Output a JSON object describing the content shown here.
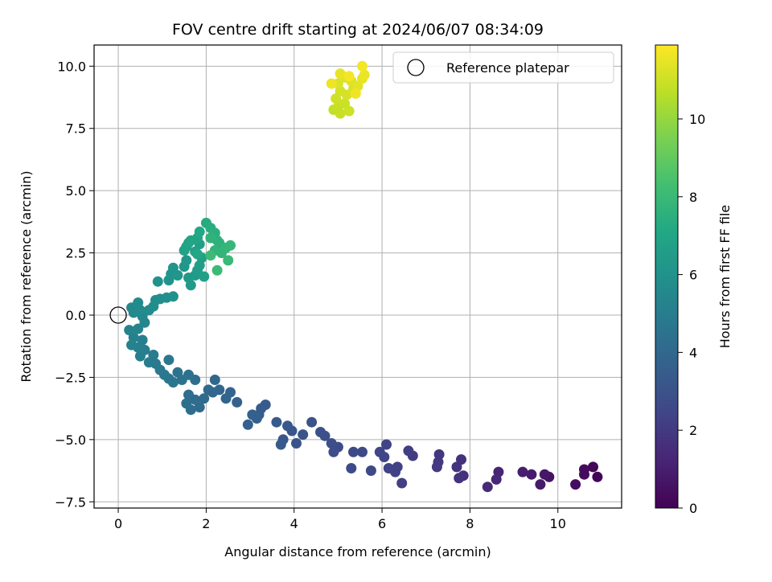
{
  "chart_data": {
    "type": "scatter",
    "title": "FOV centre drift starting at 2024/06/07 08:34:09",
    "xlabel": "Angular distance from reference (arcmin)",
    "ylabel": "Rotation from reference (arcmin)",
    "xlim": [
      -0.55,
      11.45
    ],
    "ylim": [
      -7.75,
      10.85
    ],
    "xticks": [
      0,
      2,
      4,
      6,
      8,
      10
    ],
    "yticks": [
      -7.5,
      -5.0,
      -2.5,
      0.0,
      2.5,
      5.0,
      7.5,
      10.0
    ],
    "xtick_labels": [
      "0",
      "2",
      "4",
      "6",
      "8",
      "10"
    ],
    "ytick_labels": [
      "−7.5",
      "−5.0",
      "−2.5",
      "0.0",
      "2.5",
      "5.0",
      "7.5",
      "10.0"
    ],
    "grid": true,
    "colormap": "viridis",
    "colorbar": {
      "label": "Hours from first FF file",
      "range": [
        0,
        11.9
      ],
      "ticks": [
        0,
        2,
        4,
        6,
        8,
        10
      ],
      "tick_labels": [
        "0",
        "2",
        "4",
        "6",
        "8",
        "10"
      ]
    },
    "legend": {
      "position": "top-right",
      "entries": [
        "Reference platepar"
      ]
    },
    "reference_point": {
      "x": 0.0,
      "y": 0.0
    },
    "points": [
      [
        10.9,
        -6.5,
        0.1
      ],
      [
        10.8,
        -6.1,
        0.2
      ],
      [
        10.6,
        -6.2,
        0.3
      ],
      [
        10.6,
        -6.4,
        0.35
      ],
      [
        10.4,
        -6.8,
        0.4
      ],
      [
        9.8,
        -6.5,
        0.6
      ],
      [
        9.7,
        -6.4,
        0.7
      ],
      [
        9.6,
        -6.8,
        0.8
      ],
      [
        9.4,
        -6.4,
        0.9
      ],
      [
        9.2,
        -6.3,
        1.0
      ],
      [
        8.65,
        -6.3,
        1.2
      ],
      [
        8.6,
        -6.6,
        1.3
      ],
      [
        8.4,
        -6.9,
        1.4
      ],
      [
        7.85,
        -6.45,
        1.6
      ],
      [
        7.8,
        -5.8,
        1.65
      ],
      [
        7.75,
        -6.55,
        1.7
      ],
      [
        7.7,
        -6.1,
        1.75
      ],
      [
        7.3,
        -5.6,
        1.9
      ],
      [
        7.28,
        -5.9,
        1.95
      ],
      [
        7.25,
        -6.1,
        2.0
      ],
      [
        6.7,
        -5.65,
        2.1
      ],
      [
        6.6,
        -5.45,
        2.15
      ],
      [
        6.45,
        -6.75,
        2.2
      ],
      [
        6.35,
        -6.1,
        2.25
      ],
      [
        6.3,
        -6.3,
        2.3
      ],
      [
        6.15,
        -6.15,
        2.35
      ],
      [
        6.1,
        -5.2,
        2.4
      ],
      [
        6.05,
        -5.7,
        2.45
      ],
      [
        5.95,
        -5.5,
        2.5
      ],
      [
        5.75,
        -6.25,
        2.55
      ],
      [
        5.55,
        -5.5,
        2.6
      ],
      [
        5.35,
        -5.5,
        2.65
      ],
      [
        5.3,
        -6.15,
        2.7
      ],
      [
        5.0,
        -5.3,
        2.75
      ],
      [
        4.9,
        -5.5,
        2.8
      ],
      [
        4.85,
        -5.15,
        2.85
      ],
      [
        4.7,
        -4.85,
        2.9
      ],
      [
        4.6,
        -4.7,
        2.95
      ],
      [
        4.4,
        -4.3,
        3.0
      ],
      [
        4.2,
        -4.8,
        3.05
      ],
      [
        4.05,
        -5.15,
        3.1
      ],
      [
        3.95,
        -4.65,
        3.15
      ],
      [
        3.85,
        -4.45,
        3.2
      ],
      [
        3.75,
        -5.0,
        3.25
      ],
      [
        3.7,
        -5.2,
        3.3
      ],
      [
        3.6,
        -4.3,
        3.35
      ],
      [
        3.35,
        -3.6,
        3.4
      ],
      [
        3.25,
        -3.75,
        3.45
      ],
      [
        3.2,
        -4.0,
        3.5
      ],
      [
        3.15,
        -4.15,
        3.55
      ],
      [
        3.05,
        -4.0,
        3.6
      ],
      [
        2.95,
        -4.4,
        3.65
      ],
      [
        2.7,
        -3.5,
        3.7
      ],
      [
        2.55,
        -3.1,
        3.8
      ],
      [
        2.45,
        -3.35,
        3.85
      ],
      [
        2.3,
        -3.0,
        3.9
      ],
      [
        2.2,
        -2.6,
        3.95
      ],
      [
        2.15,
        -3.1,
        4.0
      ],
      [
        2.05,
        -3.0,
        4.05
      ],
      [
        1.95,
        -3.35,
        4.1
      ],
      [
        1.85,
        -3.7,
        4.15
      ],
      [
        1.75,
        -3.4,
        4.2
      ],
      [
        1.65,
        -3.8,
        4.25
      ],
      [
        1.6,
        -3.2,
        4.3
      ],
      [
        1.55,
        -3.55,
        4.35
      ],
      [
        1.75,
        -2.6,
        4.4
      ],
      [
        1.6,
        -2.4,
        4.45
      ],
      [
        1.45,
        -2.6,
        4.5
      ],
      [
        1.35,
        -2.3,
        4.55
      ],
      [
        1.25,
        -2.7,
        4.6
      ],
      [
        1.15,
        -2.55,
        4.65
      ],
      [
        1.15,
        -1.8,
        4.7
      ],
      [
        1.05,
        -2.4,
        4.75
      ],
      [
        0.95,
        -2.2,
        4.8
      ],
      [
        0.85,
        -1.95,
        4.85
      ],
      [
        0.8,
        -1.6,
        4.9
      ],
      [
        0.7,
        -1.9,
        4.95
      ],
      [
        0.6,
        -1.4,
        5.0
      ],
      [
        0.55,
        -1.0,
        5.05
      ],
      [
        0.5,
        -1.65,
        5.1
      ],
      [
        0.45,
        -1.3,
        5.15
      ],
      [
        0.35,
        -0.9,
        5.2
      ],
      [
        0.3,
        -1.2,
        5.25
      ],
      [
        0.25,
        -0.6,
        5.3
      ],
      [
        0.45,
        -0.55,
        5.35
      ],
      [
        0.6,
        -0.3,
        5.4
      ],
      [
        0.55,
        -0.05,
        5.45
      ],
      [
        0.35,
        0.1,
        5.5
      ],
      [
        0.3,
        0.3,
        5.55
      ],
      [
        0.5,
        0.2,
        5.6
      ],
      [
        0.45,
        0.5,
        5.65
      ],
      [
        0.7,
        0.2,
        5.7
      ],
      [
        0.8,
        0.35,
        5.75
      ],
      [
        0.85,
        0.6,
        5.8
      ],
      [
        0.95,
        0.65,
        5.85
      ],
      [
        1.1,
        0.7,
        5.9
      ],
      [
        1.25,
        0.75,
        5.95
      ],
      [
        0.9,
        1.35,
        6.0
      ],
      [
        1.15,
        1.4,
        6.05
      ],
      [
        1.2,
        1.65,
        6.1
      ],
      [
        1.25,
        1.9,
        6.15
      ],
      [
        1.35,
        1.6,
        6.2
      ],
      [
        1.5,
        1.95,
        6.25
      ],
      [
        1.55,
        2.2,
        6.3
      ],
      [
        1.6,
        1.5,
        6.35
      ],
      [
        1.65,
        1.2,
        6.4
      ],
      [
        1.75,
        1.6,
        6.45
      ],
      [
        1.8,
        1.8,
        6.5
      ],
      [
        1.85,
        2.0,
        6.55
      ],
      [
        1.9,
        2.3,
        6.6
      ],
      [
        1.95,
        1.55,
        6.65
      ],
      [
        1.85,
        2.85,
        6.7
      ],
      [
        1.75,
        2.55,
        6.75
      ],
      [
        1.6,
        2.9,
        6.8
      ],
      [
        1.5,
        2.6,
        6.85
      ],
      [
        1.55,
        2.75,
        6.9
      ],
      [
        1.65,
        3.0,
        6.95
      ],
      [
        1.8,
        3.1,
        7.0
      ],
      [
        1.8,
        2.45,
        7.05
      ],
      [
        1.85,
        3.35,
        7.15
      ],
      [
        2.0,
        3.7,
        7.3
      ],
      [
        2.1,
        3.5,
        7.4
      ],
      [
        2.2,
        3.3,
        7.5
      ],
      [
        2.25,
        3.0,
        7.55
      ],
      [
        2.3,
        2.9,
        7.6
      ],
      [
        2.1,
        3.1,
        7.65
      ],
      [
        2.2,
        2.6,
        7.7
      ],
      [
        2.35,
        2.5,
        7.75
      ],
      [
        2.45,
        2.7,
        7.8
      ],
      [
        2.55,
        2.8,
        7.85
      ],
      [
        2.5,
        2.2,
        7.95
      ],
      [
        2.25,
        1.8,
        8.05
      ],
      [
        2.1,
        2.4,
        8.1
      ],
      [
        4.9,
        8.25,
        10.8
      ],
      [
        5.0,
        8.35,
        10.85
      ],
      [
        5.05,
        8.1,
        10.9
      ],
      [
        5.15,
        8.5,
        10.95
      ],
      [
        5.25,
        8.2,
        11.0
      ],
      [
        4.95,
        8.7,
        11.05
      ],
      [
        5.05,
        9.0,
        11.1
      ],
      [
        5.2,
        8.85,
        11.15
      ],
      [
        5.35,
        9.1,
        11.2
      ],
      [
        5.0,
        9.3,
        11.25
      ],
      [
        5.15,
        9.55,
        11.3
      ],
      [
        5.3,
        9.4,
        11.35
      ],
      [
        5.45,
        9.2,
        11.4
      ],
      [
        5.55,
        9.5,
        11.45
      ],
      [
        5.05,
        9.7,
        11.5
      ],
      [
        5.6,
        9.65,
        11.55
      ],
      [
        5.55,
        10.0,
        11.7
      ],
      [
        4.85,
        9.3,
        11.6
      ],
      [
        5.4,
        8.9,
        11.65
      ],
      [
        5.25,
        9.6,
        11.75
      ]
    ]
  }
}
